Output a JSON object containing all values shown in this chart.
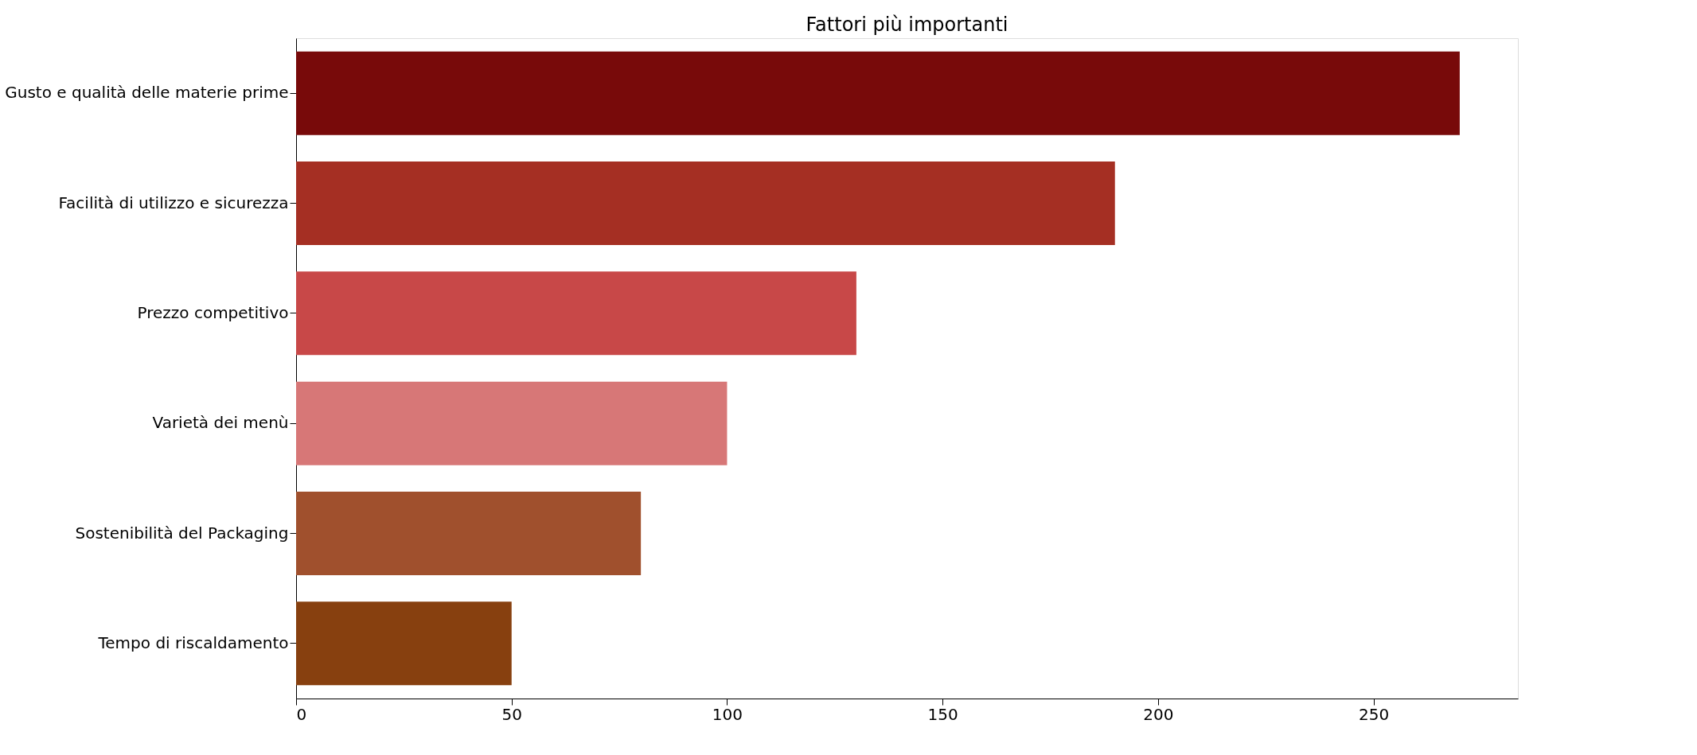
{
  "chart_data": {
    "type": "bar",
    "orientation": "horizontal",
    "title": "Fattori più importanti",
    "categories": [
      "Gusto e qualità delle materie prime",
      "Facilità di utilizzo e sicurezza",
      "Prezzo competitivo",
      "Varietà dei menù",
      "Sostenibilità del Packaging",
      "Tempo di riscaldamento"
    ],
    "values": [
      270,
      190,
      130,
      100,
      80,
      50
    ],
    "colors": [
      "#780a0a",
      "#a52f23",
      "#c84848",
      "#d77777",
      "#a0502d",
      "#87400f"
    ],
    "xlim": [
      0,
      283.5
    ],
    "xticks": [
      0,
      50,
      100,
      150,
      200,
      250
    ],
    "grid": false
  }
}
